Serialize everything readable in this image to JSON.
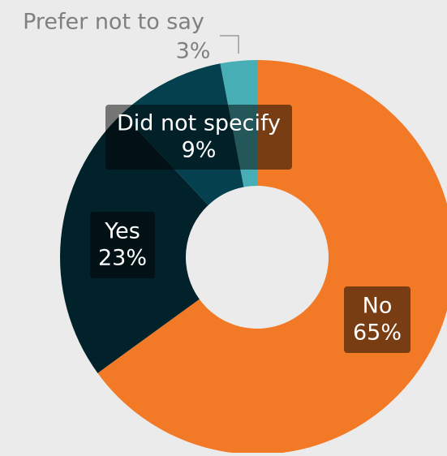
{
  "background": "#ebebeb",
  "chart_data": {
    "type": "pie",
    "donut": true,
    "title": "",
    "slices": [
      {
        "label": "No",
        "value": 65,
        "display": "65%",
        "color": "#f27a27"
      },
      {
        "label": "Yes",
        "value": 23,
        "display": "23%",
        "color": "#02222b"
      },
      {
        "label": "Did not specify",
        "value": 9,
        "display": "9%",
        "color": "#05404f"
      },
      {
        "label": "Prefer not to say",
        "value": 3,
        "display": "3%",
        "color": "#47aeb5"
      }
    ],
    "start": "12 o'clock",
    "direction": "clockwise",
    "legend": "none"
  }
}
